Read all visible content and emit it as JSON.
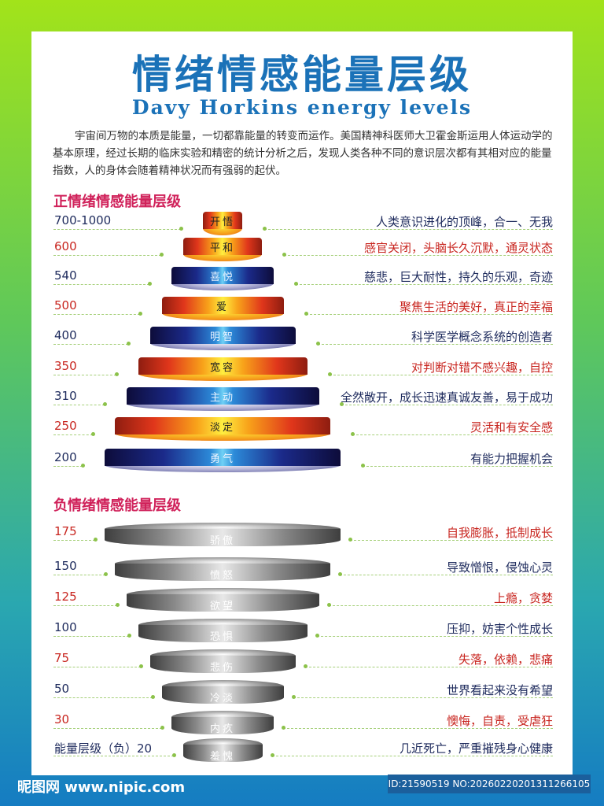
{
  "title": "情绪情感能量层级",
  "subtitle": "Davy Horkins energy levels",
  "intro": "宇宙间万物的本质是能量，一切都靠能量的转变而运作。美国精神科医师大卫霍金斯运用人体运动学的基本原理，经过长期的临床实验和精密的统计分析之后，发现人类各种不同的意识层次都有其相对应的能量指数，人的身体会随着精神状况而有强弱的起伏。",
  "positive": {
    "heading": "正情绪情感能量层级",
    "levels": [
      {
        "level": "700-1000",
        "name": "开悟",
        "desc": "人类意识进化的顶峰，合一、无我",
        "tone": "warm",
        "text": "navy"
      },
      {
        "level": "600",
        "name": "平和",
        "desc": "感官关闭，头脑长久沉默，通灵状态",
        "tone": "warm",
        "text": "red"
      },
      {
        "level": "540",
        "name": "喜悦",
        "desc": "慈悲，巨大耐性，持久的乐观，奇迹",
        "tone": "cool",
        "text": "navy"
      },
      {
        "level": "500",
        "name": "爱",
        "desc": "聚焦生活的美好，真正的幸福",
        "tone": "warm",
        "text": "red"
      },
      {
        "level": "400",
        "name": "明智",
        "desc": "科学医学概念系统的创造者",
        "tone": "cool",
        "text": "navy"
      },
      {
        "level": "350",
        "name": "宽容",
        "desc": "对判断对错不感兴趣，自控",
        "tone": "warm",
        "text": "red"
      },
      {
        "level": "310",
        "name": "主动",
        "desc": "全然敞开，成长迅速真诚友善，易于成功",
        "tone": "cool",
        "text": "navy"
      },
      {
        "level": "250",
        "name": "淡定",
        "desc": "灵活和有安全感",
        "tone": "warm",
        "text": "red"
      },
      {
        "level": "200",
        "name": "勇气",
        "desc": "有能力把握机会",
        "tone": "cool",
        "text": "navy"
      }
    ]
  },
  "negative": {
    "heading": "负情绪情感能量层级",
    "levels": [
      {
        "level": "175",
        "name": "骄傲",
        "desc": "自我膨胀，抵制成长",
        "text": "red"
      },
      {
        "level": "150",
        "name": "愤怒",
        "desc": "导致憎恨，侵蚀心灵",
        "text": "navy"
      },
      {
        "level": "125",
        "name": "欲望",
        "desc": "上瘾，贪婪",
        "text": "red"
      },
      {
        "level": "100",
        "name": "恐惧",
        "desc": "压抑，妨害个性成长",
        "text": "navy"
      },
      {
        "level": "75",
        "name": "悲伤",
        "desc": "失落，依赖，悲痛",
        "text": "red"
      },
      {
        "level": "50",
        "name": "冷淡",
        "desc": "世界看起来没有希望",
        "text": "navy"
      },
      {
        "level": "30",
        "name": "内疚",
        "desc": "懊悔，自责，受虐狂",
        "text": "red"
      },
      {
        "level": "能量层级（负）20",
        "name": "羞愧",
        "desc": "几近死亡，严重摧残身心健康",
        "text": "navy"
      }
    ]
  },
  "footer": {
    "watermark": "昵图网 www.nipic.com",
    "id": "ID:21590519 NO:20260220201311266105"
  },
  "colors": {
    "title": "#1b72b8",
    "heading": "#d0215a",
    "navy": "#1d2a5c",
    "red": "#c8251f"
  }
}
